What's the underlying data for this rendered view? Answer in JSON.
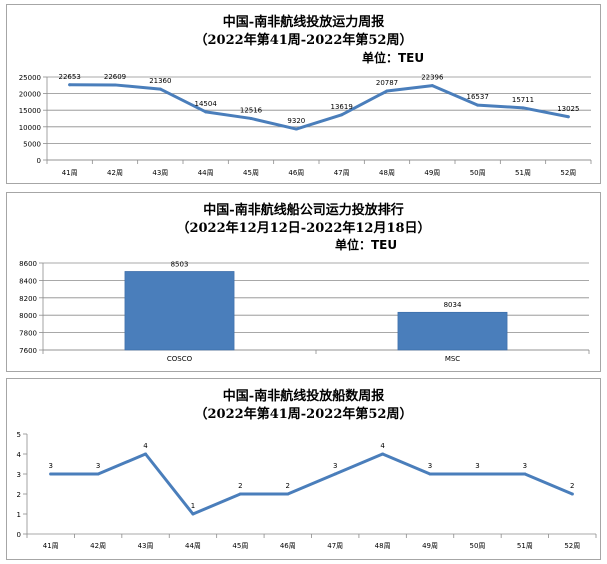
{
  "chart_data": [
    {
      "type": "line",
      "title": "中国-南非航线投放运力周报",
      "subtitle": "（2022年第41周-2022年第52周）",
      "unit": "单位：TEU",
      "categories": [
        "41周",
        "42周",
        "43周",
        "44周",
        "45周",
        "46周",
        "47周",
        "48周",
        "49周",
        "50周",
        "51周",
        "52周"
      ],
      "series": [
        {
          "values": [
            22653,
            22609,
            21360,
            14504,
            12516,
            9320,
            13619,
            20787,
            22396,
            16537,
            15711,
            13025
          ],
          "color": "#4a7ebb"
        }
      ],
      "ylim": [
        0,
        25000
      ],
      "yticks": [
        0,
        5000,
        10000,
        15000,
        20000,
        25000
      ],
      "grid": true
    },
    {
      "type": "bar",
      "title": "中国-南非航线船公司运力投放排行",
      "subtitle": "（2022年12月12日-2022年12月18日）",
      "unit": "单位：TEU",
      "categories": [
        "COSCO",
        "MSC"
      ],
      "series": [
        {
          "values": [
            8503,
            8034
          ],
          "color": "#4a7ebb"
        }
      ],
      "ylim": [
        7600,
        8600
      ],
      "yticks": [
        7600,
        7800,
        8000,
        8200,
        8400,
        8600
      ],
      "grid": true
    },
    {
      "type": "line",
      "title": "中国-南非航线投放船数周报",
      "subtitle": "（2022年第41周-2022年第52周）",
      "categories": [
        "41周",
        "42周",
        "43周",
        "44周",
        "45周",
        "46周",
        "47周",
        "48周",
        "49周",
        "50周",
        "51周",
        "52周"
      ],
      "series": [
        {
          "values": [
            3,
            3,
            4,
            1,
            2,
            2,
            3,
            4,
            3,
            3,
            3,
            2
          ],
          "color": "#4a7ebb"
        }
      ],
      "ylim": [
        0,
        5
      ],
      "yticks": [
        0,
        1,
        2,
        3,
        4,
        5
      ],
      "grid": false
    }
  ]
}
